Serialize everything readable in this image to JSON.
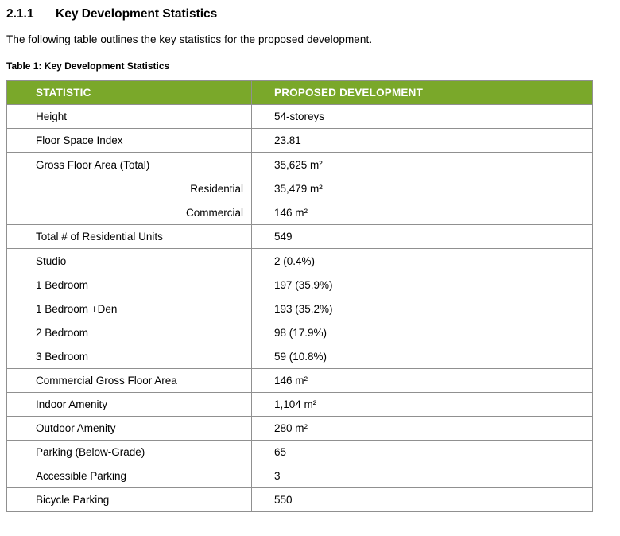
{
  "document": {
    "heading": {
      "number": "2.1.1",
      "title": "Key Development Statistics"
    },
    "intro": "The following table outlines the key statistics for the proposed development.",
    "caption": "Table 1: Key Development Statistics"
  },
  "colors": {
    "header_bg": "#7AA82A",
    "header_text": "#FFFFFF",
    "border": "#909090"
  },
  "table": {
    "columns": [
      "STATISTIC",
      "PROPOSED DEVELOPMENT"
    ],
    "rows": [
      {
        "stat": "Height",
        "value": "54-storeys"
      },
      {
        "stat": "Floor Space Index",
        "value": "23.81"
      },
      {
        "lines": [
          {
            "stat": "Gross Floor Area (Total)",
            "value": "35,625 m²"
          },
          {
            "stat": "Residential",
            "value": "35,479 m²"
          },
          {
            "stat": "Commercial",
            "value": "146 m²"
          }
        ]
      },
      {
        "stat": "Total # of Residential Units",
        "value": "549"
      },
      {
        "lines": [
          {
            "stat": "Studio",
            "value": "2 (0.4%)"
          },
          {
            "stat": "1 Bedroom",
            "value": "197 (35.9%)"
          },
          {
            "stat": "1 Bedroom +Den",
            "value": "193 (35.2%)"
          },
          {
            "stat": "2 Bedroom",
            "value": "98 (17.9%)"
          },
          {
            "stat": "3 Bedroom",
            "value": "59 (10.8%)"
          }
        ]
      },
      {
        "stat": "Commercial Gross Floor Area",
        "value": "146 m²"
      },
      {
        "stat": "Indoor Amenity",
        "value": "1,104 m²"
      },
      {
        "stat": "Outdoor Amenity",
        "value": "280 m²"
      },
      {
        "stat": "Parking (Below-Grade)",
        "value": "65"
      },
      {
        "stat": "Accessible Parking",
        "value": "3"
      },
      {
        "stat": "Bicycle Parking",
        "value": "550"
      }
    ]
  }
}
